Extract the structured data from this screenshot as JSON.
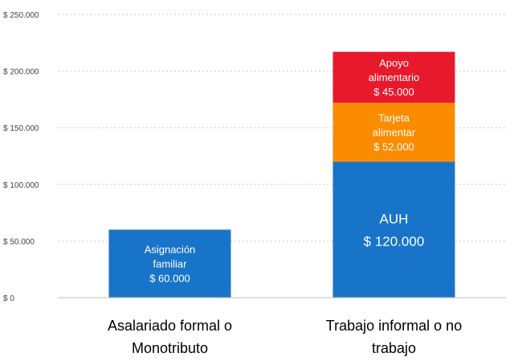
{
  "chart_data": {
    "type": "bar",
    "stacked": true,
    "title": "",
    "xlabel": "",
    "ylabel": "",
    "ylim": [
      0,
      250000
    ],
    "y_ticks": [
      {
        "value": 0,
        "label": "$ 0"
      },
      {
        "value": 50000,
        "label": "$ 50.000"
      },
      {
        "value": 100000,
        "label": "$ 100.000"
      },
      {
        "value": 150000,
        "label": "$ 150.000"
      },
      {
        "value": 200000,
        "label": "$ 200.000"
      },
      {
        "value": 250000,
        "label": "$ 250.000"
      }
    ],
    "grid": true,
    "legend": "none",
    "categories": [
      {
        "lines": [
          "Asalariado formal o",
          "Monotributo"
        ]
      },
      {
        "lines": [
          "Trabajo informal  o no",
          "trabajo"
        ]
      }
    ],
    "bars": [
      {
        "segments": [
          {
            "value": 60000,
            "color": "#1874c9",
            "label_lines": [
              "Asignación",
              "familiar",
              "$ 60.000"
            ],
            "big": false
          }
        ]
      },
      {
        "segments": [
          {
            "value": 120000,
            "color": "#1874c9",
            "label_lines": [
              "AUH",
              "$ 120.000"
            ],
            "big": true
          },
          {
            "value": 52000,
            "color": "#fb8c00",
            "label_lines": [
              "Tarjeta",
              "alimentar",
              "$ 52.000"
            ],
            "big": false
          },
          {
            "value": 45000,
            "color": "#e8192c",
            "label_lines": [
              "Apoyo",
              "alimentario",
              "$ 45.000"
            ],
            "big": false
          }
        ]
      }
    ]
  }
}
